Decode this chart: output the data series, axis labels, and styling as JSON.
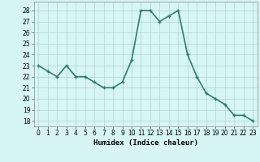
{
  "x": [
    0,
    1,
    2,
    3,
    4,
    5,
    6,
    7,
    8,
    9,
    10,
    11,
    12,
    13,
    14,
    15,
    16,
    17,
    18,
    19,
    20,
    21,
    22,
    23
  ],
  "y": [
    23.0,
    22.5,
    22.0,
    23.0,
    22.0,
    22.0,
    21.5,
    21.0,
    21.0,
    21.5,
    23.5,
    28.0,
    28.0,
    27.0,
    27.5,
    28.0,
    24.0,
    22.0,
    20.5,
    20.0,
    19.5,
    18.5,
    18.5,
    18.0
  ],
  "line_color": "#2e7d6e",
  "marker": "D",
  "marker_size": 2.0,
  "bg_color": "#d8f5f5",
  "grid_color": "#aed4d4",
  "xlabel": "Humidex (Indice chaleur)",
  "xlabel_fontsize": 6.5,
  "ylim": [
    17.5,
    28.8
  ],
  "xlim": [
    -0.5,
    23.5
  ],
  "yticks": [
    18,
    19,
    20,
    21,
    22,
    23,
    24,
    25,
    26,
    27,
    28
  ],
  "xticks": [
    0,
    1,
    2,
    3,
    4,
    5,
    6,
    7,
    8,
    9,
    10,
    11,
    12,
    13,
    14,
    15,
    16,
    17,
    18,
    19,
    20,
    21,
    22,
    23
  ],
  "tick_fontsize": 5.5,
  "linewidth": 1.2
}
